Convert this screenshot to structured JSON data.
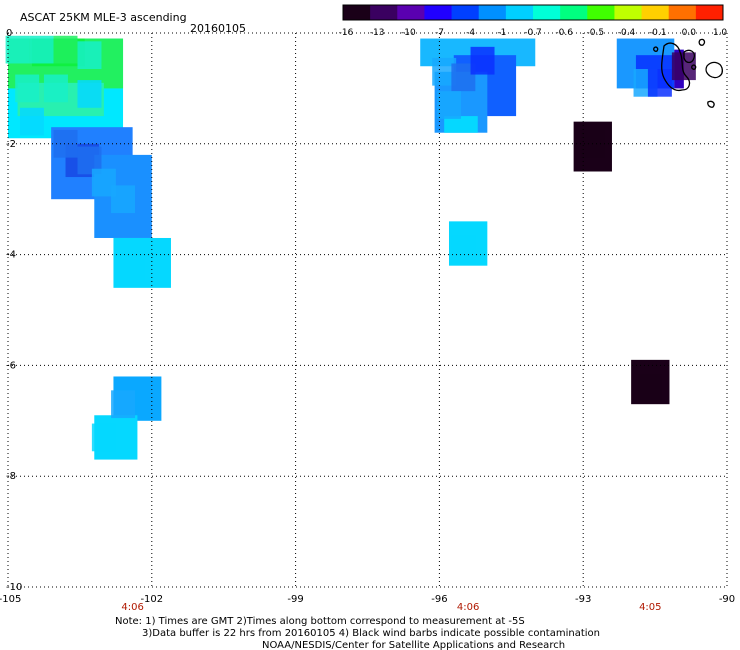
{
  "title": "ASCAT 25KM MLE-3 ascending",
  "date": "20160105",
  "colorbar": {
    "ticks": [
      "-16",
      "-13",
      "-10",
      "-7",
      "-4",
      "-1",
      "-0.7",
      "-0.6",
      "-0.5",
      "-0.4",
      "-0.1",
      "0.0",
      "1.0"
    ],
    "colors": [
      "#1a0018",
      "#3a0060",
      "#5a00b0",
      "#2000ff",
      "#0040ff",
      "#0090ff",
      "#00d0ff",
      "#00ffd8",
      "#00ff80",
      "#40ff00",
      "#c0ff00",
      "#ffd000",
      "#ff7000",
      "#ff2000"
    ]
  },
  "map": {
    "lon_ticks": [
      "-105",
      "-102",
      "-99",
      "-96",
      "-93",
      "-90"
    ],
    "lat_ticks": [
      "0",
      "-2",
      "-4",
      "-6",
      "-8",
      "-10"
    ],
    "times": [
      {
        "lon": -102.4,
        "label": "4:06"
      },
      {
        "lon": -95.4,
        "label": "4:06"
      },
      {
        "lon": -91.6,
        "label": "4:05"
      }
    ]
  },
  "chart_data": {
    "type": "heatmap",
    "title": "ASCAT 25KM MLE-3 ascending",
    "date": "20160105",
    "xlim": [
      -105,
      -90
    ],
    "ylim": [
      -10,
      0
    ],
    "cell_size_deg": 0.25,
    "cells": [
      {
        "lon": -104.8,
        "lat": -0.3,
        "value": -0.6
      },
      {
        "lon": -104.3,
        "lat": -0.3,
        "value": -0.6
      },
      {
        "lon": -103.8,
        "lat": -0.3,
        "value": -0.5
      },
      {
        "lon": -103.3,
        "lat": -0.4,
        "value": -0.6
      },
      {
        "lon": -104.6,
        "lat": -1.0,
        "value": -0.6
      },
      {
        "lon": -104.0,
        "lat": -1.0,
        "value": -0.6
      },
      {
        "lon": -103.3,
        "lat": -1.1,
        "value": -0.7
      },
      {
        "lon": -104.5,
        "lat": -1.6,
        "value": -0.7
      },
      {
        "lon": -103.8,
        "lat": -2.0,
        "value": -4
      },
      {
        "lon": -103.3,
        "lat": -2.3,
        "value": -4
      },
      {
        "lon": -103.0,
        "lat": -2.7,
        "value": -1
      },
      {
        "lon": -102.6,
        "lat": -3.0,
        "value": -1
      },
      {
        "lon": -102.4,
        "lat": -4.2,
        "value": -0.7
      },
      {
        "lon": -102.6,
        "lat": -6.7,
        "value": -1
      },
      {
        "lon": -103.0,
        "lat": -7.3,
        "value": -0.7
      },
      {
        "lon": -95.9,
        "lat": -0.7,
        "value": -1
      },
      {
        "lon": -95.5,
        "lat": -0.8,
        "value": -4
      },
      {
        "lon": -95.1,
        "lat": -0.5,
        "value": -7
      },
      {
        "lon": -95.8,
        "lat": -1.3,
        "value": -1
      },
      {
        "lon": -95.5,
        "lat": -3.9,
        "value": -0.7
      },
      {
        "lon": -91.7,
        "lat": -0.9,
        "value": -1
      },
      {
        "lon": -91.4,
        "lat": -0.9,
        "value": -7
      },
      {
        "lon": -90.9,
        "lat": -0.6,
        "value": -13
      },
      {
        "lon": -92.8,
        "lat": -2.0,
        "value": -16
      },
      {
        "lon": -91.6,
        "lat": -6.4,
        "value": -16
      }
    ]
  },
  "notes": {
    "line1": "Note: 1) Times are GMT 2)Times along bottom correspond to measurement at -5S",
    "line2": "3)Data buffer is 22 hrs from 20160105 4) Black wind barbs indicate possible contamination",
    "line3": "NOAA/NESDIS/Center for Satellite Applications and Research"
  }
}
